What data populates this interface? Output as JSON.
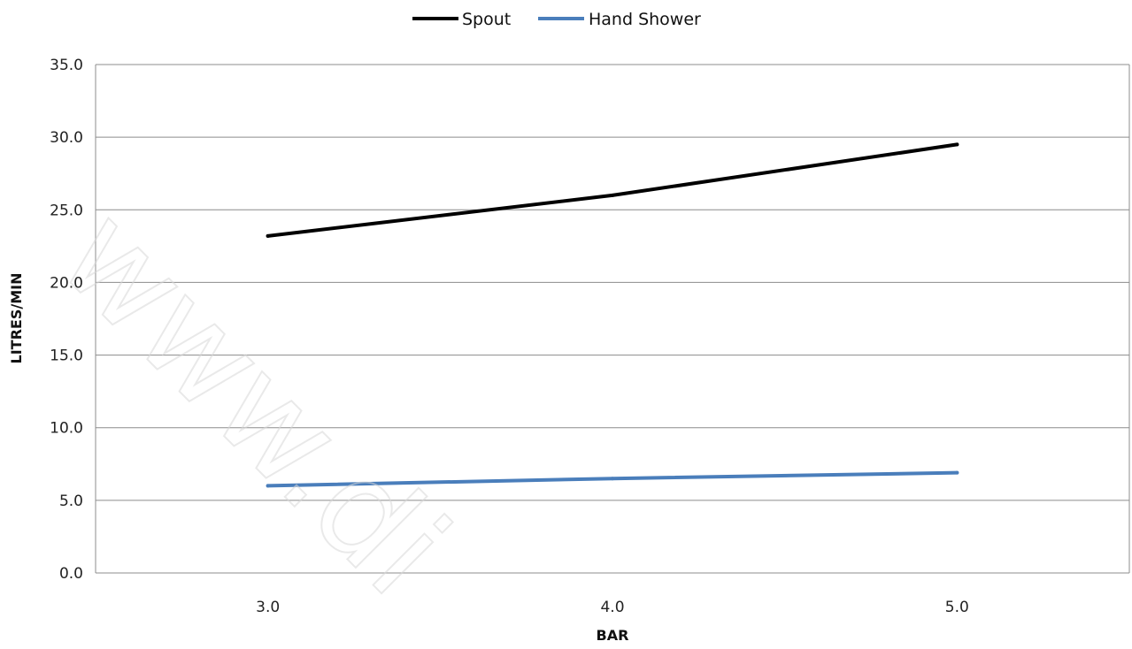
{
  "chart_data": {
    "type": "line",
    "title": "",
    "xlabel": "BAR",
    "ylabel": "LITRES/MIN",
    "x": [
      3.0,
      4.0,
      5.0
    ],
    "x_tick_labels": [
      "3.0",
      "4.0",
      "5.0"
    ],
    "xlim": [
      2.5,
      5.5
    ],
    "ylim": [
      0,
      35
    ],
    "y_tick_labels": [
      "0.0",
      "5.0",
      "10.0",
      "15.0",
      "20.0",
      "25.0",
      "30.0",
      "35.0"
    ],
    "grid": true,
    "legend_position": "top-center",
    "series": [
      {
        "name": "Spout",
        "color": "#000000",
        "values": [
          23.2,
          26.0,
          29.5
        ]
      },
      {
        "name": "Hand Shower",
        "color": "#4a7ebb",
        "values": [
          6.0,
          6.5,
          6.9
        ]
      }
    ]
  },
  "watermark": "www.di"
}
